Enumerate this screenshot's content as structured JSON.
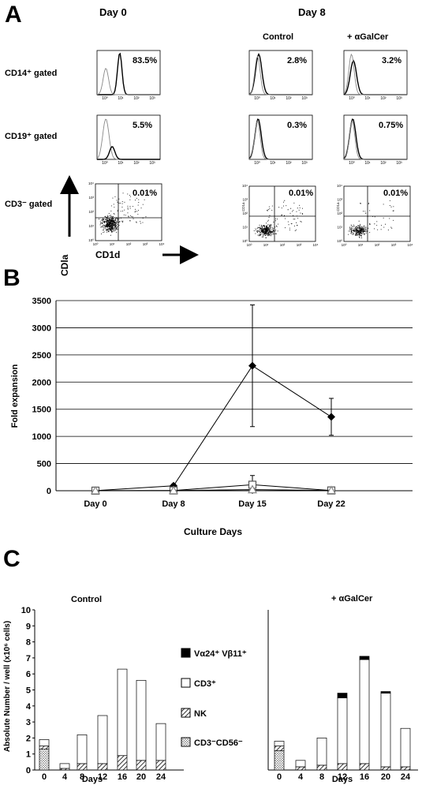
{
  "panelA": {
    "label": "A",
    "day0": "Day 0",
    "day8": "Day 8",
    "control": "Control",
    "agal": "+ αGalCer",
    "rows": [
      {
        "label": "CD14⁺ gated",
        "values": [
          "83.5%",
          "2.8%",
          "3.2%"
        ]
      },
      {
        "label": "CD19⁺ gated",
        "values": [
          "5.5%",
          "0.3%",
          "0.75%"
        ]
      },
      {
        "label": "CD3⁻ gated",
        "values": [
          "0.01%",
          "0.01%",
          "0.01%"
        ]
      }
    ],
    "histTicks": [
      "10⁰",
      "10¹",
      "10²",
      "10³"
    ],
    "dotTicksX": [
      "10⁰",
      "10¹",
      "10²",
      "10³",
      "10⁴"
    ],
    "dotTicksY": [
      "10⁰",
      "10¹",
      "10²",
      "10³",
      "10⁴"
    ],
    "yAxisLabel": "CDla",
    "xAxisLabel": "CD1d",
    "smallAxisLabel": "CD1a"
  },
  "panelB": {
    "label": "B",
    "chart_data": {
      "type": "line",
      "categories": [
        "Day 0",
        "Day 8",
        "Day 15",
        "Day 22"
      ],
      "ylabel": "Fold expansion",
      "xlabel": "Culture Days",
      "ylim": [
        0,
        3500
      ],
      "yticks": [
        "0",
        "500",
        "1000",
        "1500",
        "2000",
        "2500",
        "3000",
        "3500"
      ],
      "grid": "horizontal",
      "series": [
        {
          "marker": "diamond",
          "values": [
            1,
            90,
            2300,
            1360
          ],
          "errors": [
            0,
            30,
            1120,
            340
          ]
        },
        {
          "marker": "square",
          "values": [
            1,
            5,
            110,
            5
          ],
          "errors": [
            0,
            3,
            170,
            3
          ]
        },
        {
          "marker": "triangle",
          "values": [
            1,
            3,
            20,
            5
          ],
          "errors": [
            0,
            2,
            10,
            3
          ]
        }
      ]
    }
  },
  "panelC": {
    "label": "C",
    "ylabel": "Absolute Number / well (x10⁶ cells)",
    "legend": [
      "Vα24⁺ Vβ11⁺",
      "CD3⁺",
      "NK",
      "CD3⁻CD56⁻"
    ],
    "chart_data": [
      {
        "type": "bar",
        "title": "Control",
        "xlabel": "Days",
        "categories": [
          "0",
          "4",
          "8",
          "12",
          "16",
          "20",
          "24"
        ],
        "ylim": [
          0,
          10
        ],
        "yticks": [
          "0",
          "1",
          "2",
          "3",
          "4",
          "5",
          "6",
          "7",
          "8",
          "9",
          "10"
        ],
        "series": [
          {
            "name": "CD3⁻CD56⁻",
            "values": [
              1.3,
              0.0,
              0.0,
              0.0,
              0.0,
              0.0,
              0.0
            ]
          },
          {
            "name": "NK",
            "values": [
              0.2,
              0.1,
              0.4,
              0.4,
              0.9,
              0.6,
              0.6
            ]
          },
          {
            "name": "CD3⁺",
            "values": [
              0.4,
              0.3,
              1.8,
              3.0,
              5.4,
              5.0,
              2.3
            ]
          },
          {
            "name": "Vα24⁺ Vβ11⁺",
            "values": [
              0.0,
              0.0,
              0.0,
              0.0,
              0.0,
              0.0,
              0.0
            ]
          }
        ]
      },
      {
        "type": "bar",
        "title": "+ αGalCer",
        "xlabel": "Days",
        "categories": [
          "0",
          "4",
          "8",
          "12",
          "16",
          "20",
          "24"
        ],
        "ylim": [
          0,
          10
        ],
        "series": [
          {
            "name": "CD3⁻CD56⁻",
            "values": [
              1.2,
              0.0,
              0.0,
              0.0,
              0.0,
              0.0,
              0.0
            ]
          },
          {
            "name": "NK",
            "values": [
              0.3,
              0.2,
              0.3,
              0.4,
              0.4,
              0.2,
              0.2
            ]
          },
          {
            "name": "CD3⁺",
            "values": [
              0.3,
              0.4,
              1.7,
              4.1,
              6.5,
              4.6,
              2.4
            ]
          },
          {
            "name": "Vα24⁺ Vβ11⁺",
            "values": [
              0.0,
              0.0,
              0.0,
              0.3,
              0.2,
              0.1,
              0.0
            ]
          }
        ]
      }
    ]
  }
}
